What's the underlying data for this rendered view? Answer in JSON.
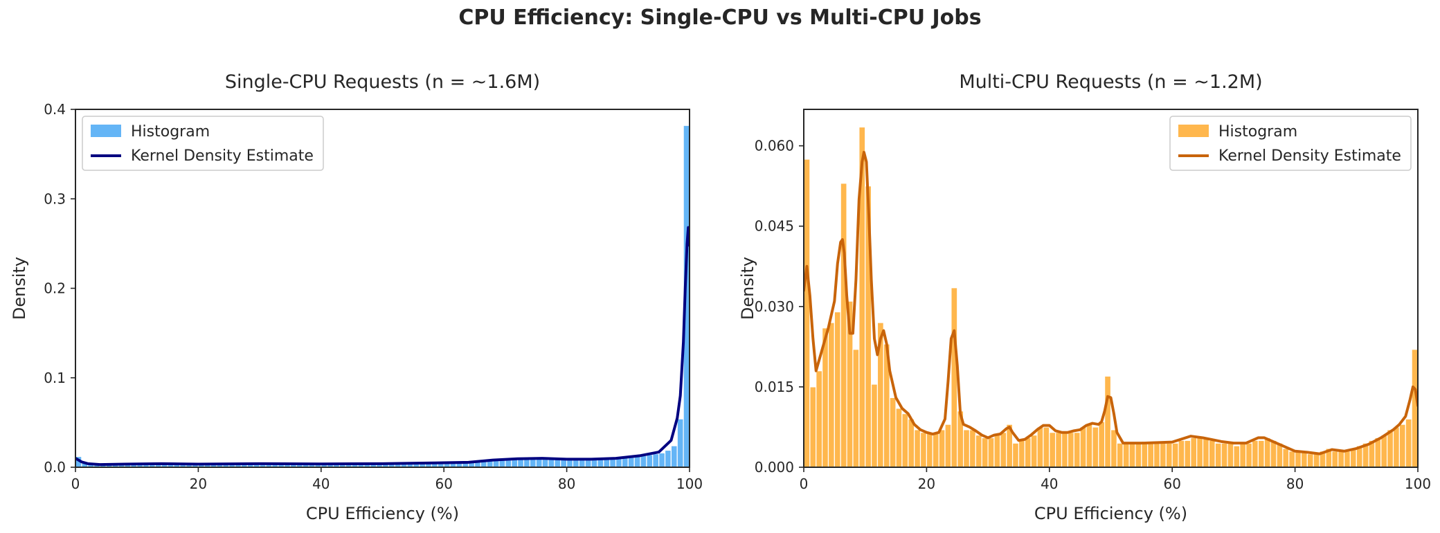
{
  "figure": {
    "title": "CPU Efficiency: Single-CPU vs Multi-CPU Jobs"
  },
  "chart_data": [
    {
      "type": "bar",
      "title": "Single-CPU Requests (n = ~1.6M)",
      "xlabel": "CPU Efficiency (%)",
      "ylabel": "Density",
      "xlim": [
        0,
        100
      ],
      "ylim": [
        0,
        0.4
      ],
      "xticks": [
        0,
        20,
        40,
        60,
        80,
        100
      ],
      "yticks": [
        0.0,
        0.1,
        0.2,
        0.3,
        0.4
      ],
      "ytick_labels": [
        "0.0",
        "0.1",
        "0.2",
        "0.3",
        "0.4"
      ],
      "grid": false,
      "legend": {
        "placement": "top-left",
        "entries": [
          "Histogram",
          "Kernel Density Estimate"
        ]
      },
      "colors": {
        "histogram": "#64b5f6",
        "kde": "#000080"
      },
      "histogram": {
        "name": "Histogram",
        "bin_width": 1,
        "bin_starts": [
          0,
          1,
          2,
          3,
          4,
          5,
          6,
          7,
          8,
          9,
          10,
          11,
          12,
          13,
          14,
          15,
          16,
          17,
          18,
          19,
          20,
          21,
          22,
          23,
          24,
          25,
          26,
          27,
          28,
          29,
          30,
          31,
          32,
          33,
          34,
          35,
          36,
          37,
          38,
          39,
          40,
          41,
          42,
          43,
          44,
          45,
          46,
          47,
          48,
          49,
          50,
          51,
          52,
          53,
          54,
          55,
          56,
          57,
          58,
          59,
          60,
          61,
          62,
          63,
          64,
          65,
          66,
          67,
          68,
          69,
          70,
          71,
          72,
          73,
          74,
          75,
          76,
          77,
          78,
          79,
          80,
          81,
          82,
          83,
          84,
          85,
          86,
          87,
          88,
          89,
          90,
          91,
          92,
          93,
          94,
          95,
          96,
          97,
          98,
          99
        ],
        "values": [
          0.012,
          0.006,
          0.004,
          0.003,
          0.003,
          0.003,
          0.003,
          0.003,
          0.003,
          0.003,
          0.003,
          0.003,
          0.003,
          0.003,
          0.003,
          0.003,
          0.003,
          0.003,
          0.003,
          0.003,
          0.003,
          0.003,
          0.003,
          0.003,
          0.003,
          0.003,
          0.003,
          0.003,
          0.003,
          0.003,
          0.003,
          0.003,
          0.003,
          0.003,
          0.003,
          0.003,
          0.003,
          0.003,
          0.003,
          0.003,
          0.003,
          0.003,
          0.003,
          0.003,
          0.003,
          0.003,
          0.003,
          0.004,
          0.004,
          0.004,
          0.004,
          0.004,
          0.004,
          0.004,
          0.004,
          0.004,
          0.004,
          0.004,
          0.005,
          0.005,
          0.005,
          0.005,
          0.005,
          0.006,
          0.006,
          0.006,
          0.007,
          0.007,
          0.008,
          0.008,
          0.009,
          0.009,
          0.009,
          0.009,
          0.009,
          0.01,
          0.01,
          0.01,
          0.01,
          0.01,
          0.009,
          0.009,
          0.009,
          0.009,
          0.009,
          0.009,
          0.009,
          0.01,
          0.01,
          0.011,
          0.012,
          0.012,
          0.013,
          0.014,
          0.015,
          0.016,
          0.019,
          0.024,
          0.054,
          0.382
        ]
      },
      "kde": {
        "name": "Kernel Density Estimate",
        "x": [
          0,
          1,
          2,
          4,
          8,
          14,
          20,
          30,
          40,
          50,
          60,
          64,
          68,
          72,
          76,
          80,
          84,
          88,
          92,
          95,
          97,
          98,
          98.5,
          99,
          99.3,
          99.6,
          99.8,
          100
        ],
        "y": [
          0.01,
          0.006,
          0.004,
          0.003,
          0.0035,
          0.004,
          0.0035,
          0.004,
          0.0037,
          0.004,
          0.005,
          0.0055,
          0.008,
          0.0095,
          0.01,
          0.009,
          0.009,
          0.01,
          0.013,
          0.017,
          0.03,
          0.055,
          0.08,
          0.14,
          0.2,
          0.25,
          0.268,
          0.248
        ]
      }
    },
    {
      "type": "bar",
      "title": "Multi-CPU Requests (n = ~1.2M)",
      "xlabel": "CPU Efficiency (%)",
      "ylabel": "Density",
      "xlim": [
        0,
        100
      ],
      "ylim": [
        0,
        0.0668
      ],
      "xticks": [
        0,
        20,
        40,
        60,
        80,
        100
      ],
      "yticks": [
        0.0,
        0.015,
        0.03,
        0.045,
        0.06
      ],
      "ytick_labels": [
        "0.000",
        "0.015",
        "0.030",
        "0.045",
        "0.060"
      ],
      "grid": false,
      "legend": {
        "placement": "top-right",
        "entries": [
          "Histogram",
          "Kernel Density Estimate"
        ]
      },
      "colors": {
        "histogram": "#ffb74d",
        "kde": "#c8640a"
      },
      "histogram": {
        "name": "Histogram",
        "bin_width": 1,
        "bin_starts": [
          0,
          1,
          2,
          3,
          4,
          5,
          6,
          7,
          8,
          9,
          10,
          11,
          12,
          13,
          14,
          15,
          16,
          17,
          18,
          19,
          20,
          21,
          22,
          23,
          24,
          25,
          26,
          27,
          28,
          29,
          30,
          31,
          32,
          33,
          34,
          35,
          36,
          37,
          38,
          39,
          40,
          41,
          42,
          43,
          44,
          45,
          46,
          47,
          48,
          49,
          50,
          51,
          52,
          53,
          54,
          55,
          56,
          57,
          58,
          59,
          60,
          61,
          62,
          63,
          64,
          65,
          66,
          67,
          68,
          69,
          70,
          71,
          72,
          73,
          74,
          75,
          76,
          77,
          78,
          79,
          80,
          81,
          82,
          83,
          84,
          85,
          86,
          87,
          88,
          89,
          90,
          91,
          92,
          93,
          94,
          95,
          96,
          97,
          98,
          99
        ],
        "values": [
          0.0575,
          0.015,
          0.018,
          0.026,
          0.027,
          0.029,
          0.053,
          0.031,
          0.022,
          0.0635,
          0.0525,
          0.0155,
          0.027,
          0.023,
          0.013,
          0.011,
          0.01,
          0.009,
          0.007,
          0.0065,
          0.0065,
          0.0065,
          0.007,
          0.008,
          0.0335,
          0.0105,
          0.007,
          0.007,
          0.006,
          0.0055,
          0.0055,
          0.006,
          0.0065,
          0.008,
          0.0045,
          0.005,
          0.0055,
          0.006,
          0.0075,
          0.0075,
          0.0065,
          0.0065,
          0.0065,
          0.0065,
          0.0065,
          0.0075,
          0.008,
          0.0075,
          0.0085,
          0.017,
          0.007,
          0.0045,
          0.0045,
          0.0045,
          0.0045,
          0.0045,
          0.0045,
          0.0045,
          0.0045,
          0.0045,
          0.0045,
          0.005,
          0.005,
          0.0055,
          0.0055,
          0.0055,
          0.005,
          0.0045,
          0.0045,
          0.0045,
          0.004,
          0.0045,
          0.0045,
          0.005,
          0.005,
          0.0055,
          0.005,
          0.0045,
          0.0035,
          0.003,
          0.003,
          0.003,
          0.0025,
          0.0025,
          0.003,
          0.0035,
          0.003,
          0.003,
          0.003,
          0.0035,
          0.004,
          0.0045,
          0.005,
          0.0055,
          0.006,
          0.007,
          0.0075,
          0.008,
          0.009,
          0.022
        ]
      },
      "kde": {
        "name": "Kernel Density Estimate",
        "x": [
          0,
          0.5,
          1,
          1.5,
          2,
          3,
          4,
          5,
          5.5,
          6,
          6.3,
          6.6,
          7,
          7.5,
          8,
          8.5,
          9,
          9.5,
          9.8,
          10.2,
          10.6,
          11,
          11.5,
          12,
          12.5,
          13,
          13.5,
          14,
          15,
          16,
          17,
          18,
          19,
          20,
          21,
          22,
          23,
          23.5,
          24,
          24.5,
          25,
          25.5,
          26,
          27,
          28,
          29,
          30,
          31,
          32,
          33,
          33.5,
          34,
          35,
          36,
          37,
          38,
          39,
          40,
          41,
          42,
          43,
          44,
          45,
          46,
          47,
          48,
          48.5,
          49,
          49.5,
          50,
          50.5,
          51,
          52,
          55,
          60,
          63,
          65,
          68,
          70,
          72,
          74,
          75,
          77,
          79,
          80,
          82,
          84,
          86,
          88,
          90,
          92,
          94,
          96,
          97,
          98,
          98.7,
          99.2,
          99.6,
          100
        ],
        "y": [
          0.033,
          0.0375,
          0.032,
          0.024,
          0.018,
          0.022,
          0.026,
          0.031,
          0.038,
          0.042,
          0.0425,
          0.04,
          0.032,
          0.025,
          0.025,
          0.035,
          0.05,
          0.057,
          0.0588,
          0.057,
          0.047,
          0.035,
          0.024,
          0.021,
          0.024,
          0.0255,
          0.023,
          0.018,
          0.013,
          0.011,
          0.01,
          0.008,
          0.007,
          0.0065,
          0.0062,
          0.0065,
          0.009,
          0.016,
          0.024,
          0.0255,
          0.019,
          0.01,
          0.008,
          0.0075,
          0.0068,
          0.006,
          0.0055,
          0.006,
          0.0062,
          0.0072,
          0.0075,
          0.0065,
          0.005,
          0.0052,
          0.006,
          0.007,
          0.0078,
          0.0078,
          0.0068,
          0.0065,
          0.0065,
          0.0068,
          0.007,
          0.0078,
          0.0082,
          0.008,
          0.0085,
          0.0105,
          0.0132,
          0.013,
          0.01,
          0.0065,
          0.0045,
          0.0045,
          0.0047,
          0.0058,
          0.0055,
          0.0048,
          0.0045,
          0.0045,
          0.0055,
          0.0055,
          0.0045,
          0.0035,
          0.003,
          0.0028,
          0.0025,
          0.0033,
          0.003,
          0.0035,
          0.0043,
          0.0055,
          0.007,
          0.008,
          0.0095,
          0.0125,
          0.015,
          0.0145,
          0.0115
        ]
      }
    }
  ]
}
